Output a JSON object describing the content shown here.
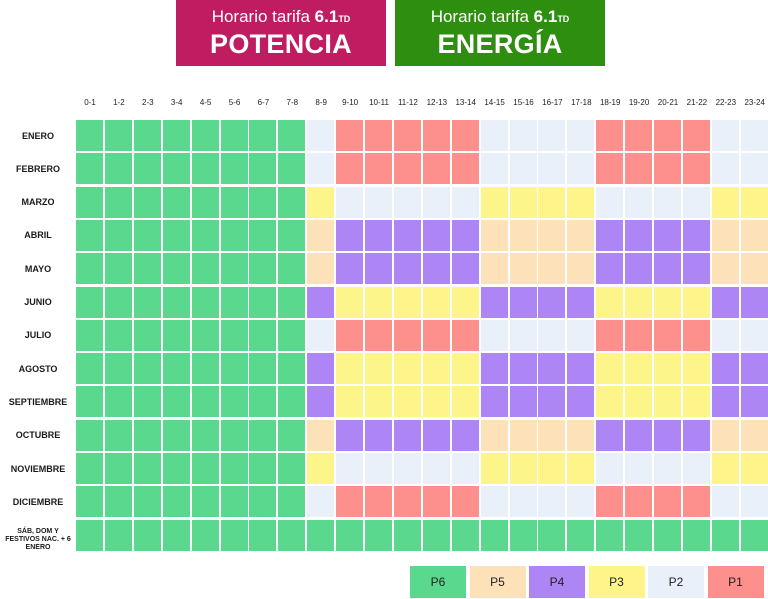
{
  "banners": {
    "potencia": {
      "sub": "Horario tarifa ",
      "sub_bold": "6.1",
      "sub_small": "TD",
      "main": "POTENCIA",
      "color": "#c01c62"
    },
    "energia": {
      "sub": "Horario tarifa ",
      "sub_bold": "6.1",
      "sub_small": "TD",
      "main": "ENERGÍA",
      "color": "#2e8e10"
    }
  },
  "hours": [
    "0-1",
    "1-2",
    "2-3",
    "3-4",
    "4-5",
    "5-6",
    "6-7",
    "7-8",
    "8-9",
    "9-10",
    "10-11",
    "11-12",
    "12-13",
    "13-14",
    "14-15",
    "15-16",
    "16-17",
    "17-18",
    "18-19",
    "19-20",
    "20-21",
    "21-22",
    "22-23",
    "23-24"
  ],
  "colors": {
    "P6": "#5ad88e",
    "P5": "#fde1b9",
    "P4": "#ad85f5",
    "P3": "#fef58a",
    "P2": "#e9f0f9",
    "P1": "#fd8f8d"
  },
  "rows": [
    {
      "label": "ENERO",
      "periods": "666666662111112222111122"
    },
    {
      "label": "FEBRERO",
      "periods": "666666662111112222111122"
    },
    {
      "label": "MARZO",
      "periods": "666666663222223333222233"
    },
    {
      "label": "ABRIL",
      "periods": "666666665444445555444455"
    },
    {
      "label": "MAYO",
      "periods": "666666665444445555444455"
    },
    {
      "label": "JUNIO",
      "periods": "666666664333334444333344"
    },
    {
      "label": "JULIO",
      "periods": "666666662111112222111122"
    },
    {
      "label": "AGOSTO",
      "periods": "666666664333334444333344"
    },
    {
      "label": "SEPTIEMBRE",
      "periods": "666666664333334444333344"
    },
    {
      "label": "OCTUBRE",
      "periods": "666666665444445555444455"
    },
    {
      "label": "NOVIEMBRE",
      "periods": "666666663222223333222233"
    },
    {
      "label": "DICIEMBRE",
      "periods": "666666662111112222111122"
    },
    {
      "label": "SÁB, DOM Y FESTIVOS NAC. + 6 ENERO",
      "periods": "666666666666666666666666"
    }
  ],
  "legend": [
    "P6",
    "P5",
    "P4",
    "P3",
    "P2",
    "P1"
  ]
}
